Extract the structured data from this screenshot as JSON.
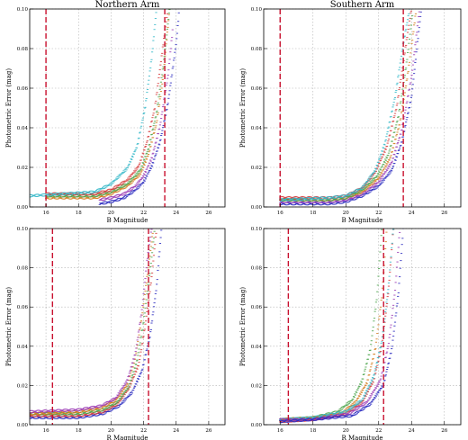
{
  "chart_data": [
    {
      "id": "north-b",
      "type": "scatter",
      "title": "Northern Arm",
      "xlabel": "B Magnitude",
      "ylabel": "Photometric Error (mag)",
      "xlim": [
        15,
        27
      ],
      "ylim": [
        0,
        0.1
      ],
      "xticks": [
        16,
        18,
        20,
        22,
        24,
        26
      ],
      "yticks": [
        0.0,
        0.02,
        0.04,
        0.06,
        0.08,
        0.1
      ],
      "grid": true,
      "cutoff_lines": [
        16.0,
        23.3
      ],
      "series": [
        {
          "color": "#2b2bbf",
          "x": [
            19.3,
            20.0,
            20.8,
            21.5,
            22.0,
            22.5,
            23.0,
            23.5,
            24.0,
            24.2
          ],
          "y": [
            0.001,
            0.002,
            0.004,
            0.008,
            0.012,
            0.02,
            0.032,
            0.052,
            0.082,
            0.1
          ]
        },
        {
          "color": "#9b3bb5",
          "x": [
            19.3,
            20.0,
            20.8,
            21.5,
            22.0,
            22.5,
            23.0,
            23.5,
            23.8
          ],
          "y": [
            0.003,
            0.004,
            0.006,
            0.01,
            0.015,
            0.024,
            0.04,
            0.066,
            0.09
          ]
        },
        {
          "color": "#d47b1e",
          "x": [
            16.0,
            19.0,
            20.0,
            21.0,
            21.8,
            22.3,
            22.8,
            23.2,
            23.6
          ],
          "y": [
            0.004,
            0.004,
            0.006,
            0.01,
            0.016,
            0.026,
            0.042,
            0.065,
            0.1
          ]
        },
        {
          "color": "#4ea64e",
          "x": [
            16.0,
            19.0,
            20.0,
            21.0,
            21.8,
            22.3,
            22.8,
            23.2,
            23.6
          ],
          "y": [
            0.005,
            0.005,
            0.007,
            0.011,
            0.018,
            0.029,
            0.047,
            0.07,
            0.1
          ]
        },
        {
          "color": "#d63b3b",
          "x": [
            16.0,
            19.0,
            20.0,
            21.0,
            21.7,
            22.2,
            22.7,
            23.1,
            23.5
          ],
          "y": [
            0.006,
            0.006,
            0.008,
            0.013,
            0.02,
            0.032,
            0.05,
            0.075,
            0.1
          ]
        },
        {
          "color": "#35b8c9",
          "x": [
            15.0,
            17.0,
            19.0,
            20.0,
            21.0,
            21.6,
            22.1,
            22.5,
            22.8
          ],
          "y": [
            0.005,
            0.006,
            0.007,
            0.011,
            0.019,
            0.03,
            0.05,
            0.075,
            0.1
          ]
        }
      ]
    },
    {
      "id": "south-b",
      "type": "scatter",
      "title": "Southern Arm",
      "xlabel": "B Magnitude",
      "ylabel": "Photometric Error (mag)",
      "xlim": [
        15,
        27
      ],
      "ylim": [
        0,
        0.1
      ],
      "xticks": [
        16,
        18,
        20,
        22,
        24,
        26
      ],
      "yticks": [
        0.0,
        0.02,
        0.04,
        0.06,
        0.08,
        0.1
      ],
      "grid": true,
      "cutoff_lines": [
        16.0,
        23.5
      ],
      "series": [
        {
          "color": "#2b2bbf",
          "x": [
            16.0,
            19.0,
            20.0,
            21.0,
            22.0,
            22.8,
            23.4,
            24.0,
            24.6
          ],
          "y": [
            0.001,
            0.001,
            0.002,
            0.005,
            0.01,
            0.018,
            0.032,
            0.055,
            0.1
          ]
        },
        {
          "color": "#9b3bb5",
          "x": [
            16.0,
            19.0,
            20.0,
            21.0,
            22.0,
            22.8,
            23.4,
            24.0,
            24.5
          ],
          "y": [
            0.002,
            0.002,
            0.003,
            0.006,
            0.012,
            0.022,
            0.038,
            0.065,
            0.1
          ]
        },
        {
          "color": "#d47b1e",
          "x": [
            16.0,
            19.0,
            20.0,
            21.0,
            22.0,
            22.7,
            23.3,
            23.8,
            24.3
          ],
          "y": [
            0.003,
            0.003,
            0.004,
            0.007,
            0.014,
            0.024,
            0.042,
            0.068,
            0.1
          ]
        },
        {
          "color": "#4ea64e",
          "x": [
            16.0,
            19.0,
            20.0,
            21.0,
            21.9,
            22.6,
            23.2,
            23.7,
            24.1
          ],
          "y": [
            0.003,
            0.003,
            0.004,
            0.008,
            0.015,
            0.026,
            0.045,
            0.072,
            0.1
          ]
        },
        {
          "color": "#d63b3b",
          "x": [
            16.0,
            19.0,
            20.0,
            21.0,
            21.8,
            22.5,
            23.1,
            23.6,
            24.0
          ],
          "y": [
            0.004,
            0.004,
            0.005,
            0.009,
            0.017,
            0.03,
            0.05,
            0.078,
            0.1
          ]
        },
        {
          "color": "#35b8c9",
          "x": [
            16.0,
            19.0,
            20.0,
            21.0,
            21.8,
            22.4,
            23.0,
            23.5,
            23.9
          ],
          "y": [
            0.003,
            0.004,
            0.005,
            0.009,
            0.018,
            0.032,
            0.055,
            0.082,
            0.1
          ]
        }
      ]
    },
    {
      "id": "north-r",
      "type": "scatter",
      "title": "",
      "xlabel": "R Magnitude",
      "ylabel": "Photometric Error (mag)",
      "xlim": [
        15,
        27
      ],
      "ylim": [
        0,
        0.1
      ],
      "xticks": [
        16,
        18,
        20,
        22,
        24,
        26
      ],
      "yticks": [
        0.0,
        0.02,
        0.04,
        0.06,
        0.08,
        0.1
      ],
      "grid": true,
      "cutoff_lines": [
        16.4,
        22.3
      ],
      "series": [
        {
          "color": "#2b2bbf",
          "x": [
            15.0,
            18.0,
            19.5,
            20.5,
            21.3,
            21.9,
            22.4,
            22.8,
            23.1
          ],
          "y": [
            0.003,
            0.003,
            0.005,
            0.009,
            0.016,
            0.027,
            0.045,
            0.07,
            0.1
          ]
        },
        {
          "color": "#d63b3b",
          "x": [
            15.0,
            18.0,
            19.5,
            20.4,
            21.1,
            21.7,
            22.1,
            22.5,
            22.8
          ],
          "y": [
            0.004,
            0.004,
            0.006,
            0.01,
            0.018,
            0.03,
            0.05,
            0.075,
            0.1
          ]
        },
        {
          "color": "#4ea64e",
          "x": [
            15.0,
            18.0,
            19.5,
            20.4,
            21.1,
            21.6,
            22.0,
            22.4,
            22.7
          ],
          "y": [
            0.005,
            0.005,
            0.007,
            0.011,
            0.019,
            0.032,
            0.052,
            0.078,
            0.1
          ]
        },
        {
          "color": "#d47b1e",
          "x": [
            15.0,
            18.0,
            19.4,
            20.3,
            21.0,
            21.5,
            21.9,
            22.3,
            22.6
          ],
          "y": [
            0.005,
            0.006,
            0.008,
            0.012,
            0.02,
            0.034,
            0.055,
            0.08,
            0.1
          ]
        },
        {
          "color": "#9b3bb5",
          "x": [
            15.0,
            18.0,
            19.4,
            20.3,
            21.0,
            21.5,
            21.9,
            22.2,
            22.5
          ],
          "y": [
            0.006,
            0.007,
            0.009,
            0.013,
            0.022,
            0.036,
            0.058,
            0.082,
            0.1
          ]
        }
      ]
    },
    {
      "id": "south-r",
      "type": "scatter",
      "title": "",
      "xlabel": "R Magnitude",
      "ylabel": "Photometric Error (mag)",
      "xlim": [
        15,
        27
      ],
      "ylim": [
        0,
        0.1
      ],
      "xticks": [
        16,
        18,
        20,
        22,
        24,
        26
      ],
      "yticks": [
        0.0,
        0.02,
        0.04,
        0.06,
        0.08,
        0.1
      ],
      "grid": true,
      "cutoff_lines": [
        16.5,
        22.3
      ],
      "series": [
        {
          "color": "#4ea64e",
          "x": [
            16.0,
            18.0,
            19.5,
            20.4,
            21.0,
            21.5,
            21.9,
            22.2
          ],
          "y": [
            0.002,
            0.003,
            0.006,
            0.012,
            0.022,
            0.038,
            0.065,
            0.1
          ]
        },
        {
          "color": "#d47b1e",
          "x": [
            16.0,
            18.0,
            19.7,
            20.6,
            21.3,
            21.8,
            22.2,
            22.5
          ],
          "y": [
            0.002,
            0.003,
            0.005,
            0.011,
            0.021,
            0.038,
            0.065,
            0.1
          ]
        },
        {
          "color": "#d63b3b",
          "x": [
            16.0,
            18.0,
            20.0,
            21.0,
            21.7,
            22.2,
            22.6,
            22.9
          ],
          "y": [
            0.001,
            0.002,
            0.005,
            0.011,
            0.022,
            0.04,
            0.068,
            0.1
          ]
        },
        {
          "color": "#35b8c9",
          "x": [
            16.0,
            18.0,
            20.0,
            21.0,
            21.7,
            22.2,
            22.6,
            22.9
          ],
          "y": [
            0.002,
            0.003,
            0.006,
            0.012,
            0.024,
            0.042,
            0.07,
            0.1
          ]
        },
        {
          "color": "#9b3bb5",
          "x": [
            16.0,
            18.0,
            20.2,
            21.3,
            22.1,
            22.6,
            23.0,
            23.3
          ],
          "y": [
            0.002,
            0.002,
            0.005,
            0.011,
            0.022,
            0.04,
            0.068,
            0.1
          ]
        },
        {
          "color": "#2b2bbf",
          "x": [
            16.0,
            18.0,
            20.4,
            21.5,
            22.3,
            22.8,
            23.2,
            23.5
          ],
          "y": [
            0.001,
            0.002,
            0.004,
            0.01,
            0.02,
            0.038,
            0.066,
            0.1
          ]
        }
      ]
    }
  ]
}
